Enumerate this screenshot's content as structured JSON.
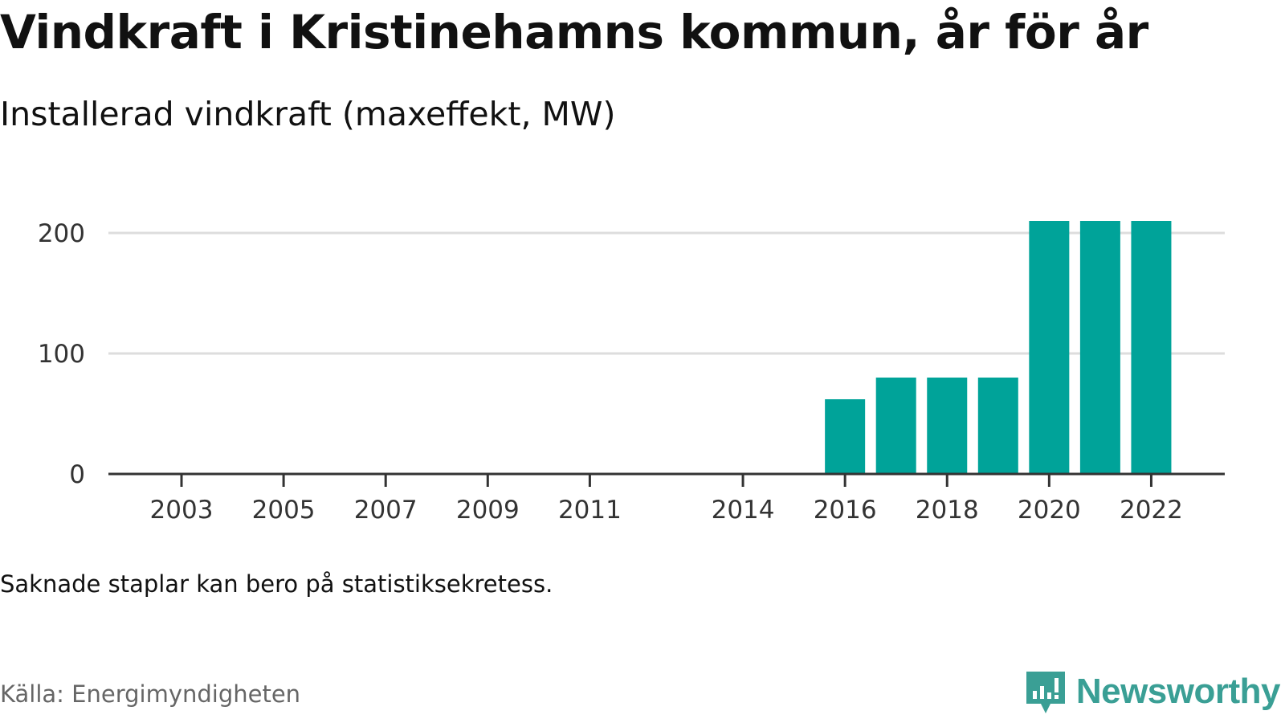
{
  "title": "Vindkraft i Kristinehamns kommun, år för år",
  "subtitle": "Installerad vindkraft (maxeffekt, MW)",
  "note": "Saknade staplar kan bero på statistiksekretess.",
  "source": "Källa: Energimyndigheten",
  "brand": {
    "name": "Newsworthy",
    "color": "#3a9f95",
    "icon": "bar-chart-speech-bubble-icon"
  },
  "colors": {
    "bar": "#00a399",
    "grid": "#dddddd",
    "axis": "#333333"
  },
  "chart_data": {
    "type": "bar",
    "x_tick_labels": [
      "2003",
      "2005",
      "2007",
      "2009",
      "2011",
      "2014",
      "2016",
      "2018",
      "2020",
      "2022"
    ],
    "categories": [
      "2016",
      "2017",
      "2018",
      "2019",
      "2020",
      "2021",
      "2022"
    ],
    "values": [
      62,
      80,
      80,
      80,
      210,
      210,
      210
    ],
    "ylim": [
      0,
      220
    ],
    "y_ticks": [
      0,
      100,
      200
    ],
    "grid": true,
    "xlabel": "",
    "ylabel": ""
  }
}
